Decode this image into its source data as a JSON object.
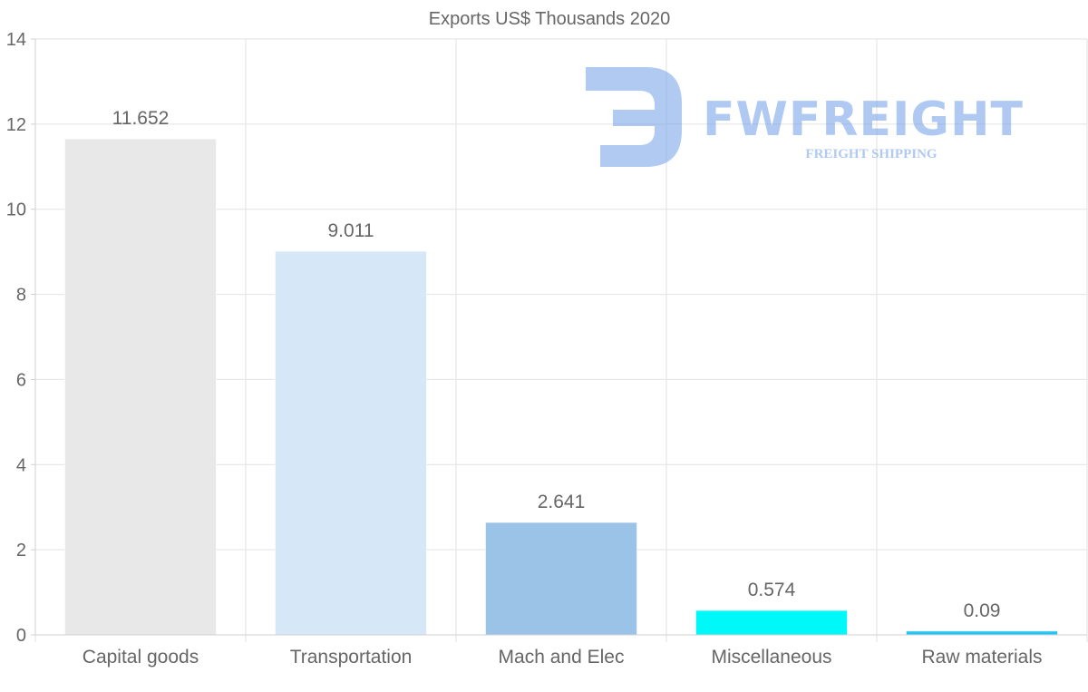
{
  "chart_data": {
    "type": "bar",
    "title": "Exports US$ Thousands 2020",
    "categories": [
      "Capital goods",
      "Transportation",
      "Mach and Elec",
      "Miscellaneous",
      "Raw materials"
    ],
    "values": [
      11.652,
      9.011,
      2.641,
      0.574,
      0.09
    ],
    "value_labels": [
      "11.652",
      "9.011",
      "2.641",
      "0.574",
      "0.09"
    ],
    "ylim": [
      0,
      14
    ],
    "yticks": [
      0,
      2,
      4,
      6,
      8,
      10,
      12,
      14
    ],
    "grid": true,
    "legend": "none",
    "bar_colors": [
      "#e8e8e8",
      "#d6e7f8",
      "#9bc3e8",
      "#00f8f8",
      "#27c4f3"
    ]
  },
  "watermark": {
    "brand": "FWFREIGHT",
    "tagline": "FREIGHT SHIPPING",
    "color": "#6f9ee8"
  }
}
